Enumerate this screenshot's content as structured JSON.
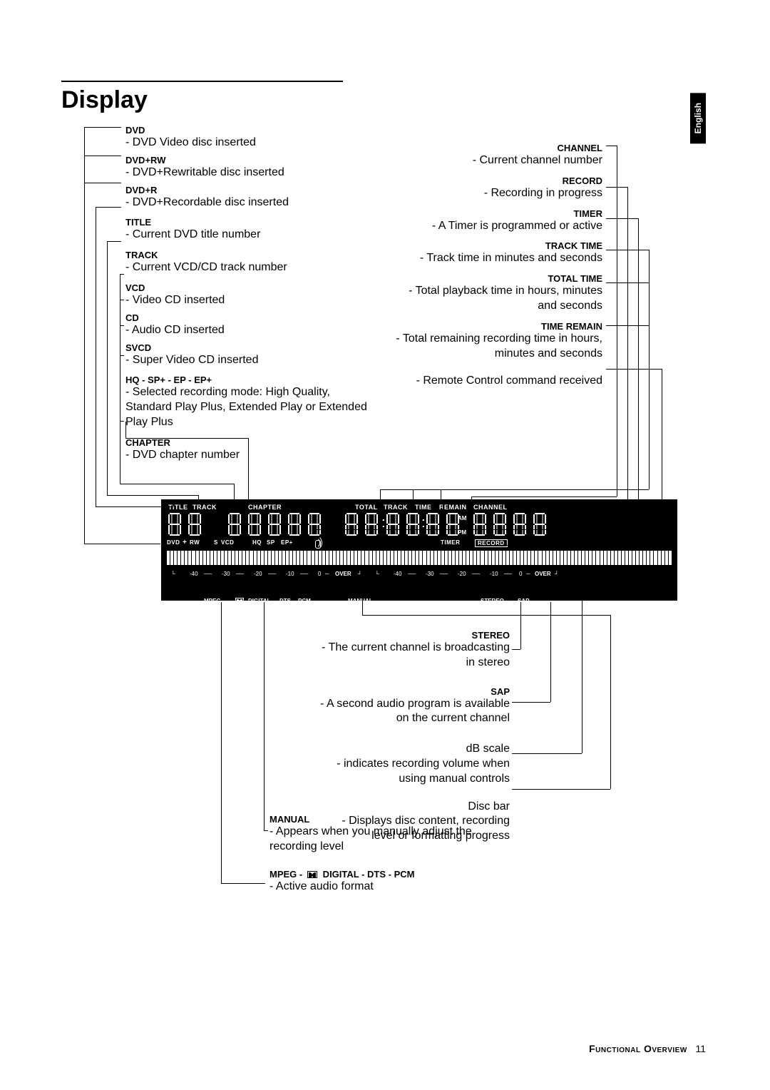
{
  "lang_tab": "English",
  "page_title": "Display",
  "left_callouts": [
    {
      "hd": "DVD",
      "ds": "- DVD Video disc inserted"
    },
    {
      "hd": "DVD+RW",
      "ds": "- DVD+Rewritable disc inserted"
    },
    {
      "hd": "DVD+R",
      "ds": "- DVD+Recordable disc inserted"
    },
    {
      "hd": "TITLE",
      "ds": "- Current DVD title number"
    },
    {
      "hd": "TRACK",
      "ds": "- Current VCD/CD track number"
    },
    {
      "hd": "VCD",
      "ds": "- Video CD inserted"
    },
    {
      "hd": "CD",
      "ds": "- Audio CD inserted"
    },
    {
      "hd": "SVCD",
      "ds": "- Super Video CD inserted"
    },
    {
      "hd": "HQ - SP+ - EP - EP+",
      "ds": "- Selected recording mode: High Quality, Standard Play Plus, Extended Play or Extended Play Plus"
    },
    {
      "hd": "CHAPTER",
      "ds": "- DVD chapter number"
    }
  ],
  "right_callouts": [
    {
      "hd": "CHANNEL",
      "ds": "- Current channel number"
    },
    {
      "hd": "RECORD",
      "ds": "- Recording in progress"
    },
    {
      "hd": "TIMER",
      "ds": "- A Timer is programmed or active"
    },
    {
      "hd": "TRACK TIME",
      "ds": "- Track time in minutes and seconds"
    },
    {
      "hd": "TOTAL TIME",
      "ds": "- Total playback time in hours, minutes and seconds"
    },
    {
      "hd": "TIME REMAIN",
      "ds": "- Total remaining recording time in hours, minutes and seconds"
    },
    {
      "hd": "",
      "ds": "- Remote Control command received"
    }
  ],
  "bottom_right_callouts": [
    {
      "hd": "STEREO",
      "ds": "- The current channel is broadcasting in stereo"
    },
    {
      "hd": "SAP",
      "ds": "- A second audio program is available on the current channel"
    },
    {
      "hd": "dB scale",
      "ds": "- indicates recording volume when using manual controls"
    },
    {
      "hd": "Disc bar",
      "ds": "- Displays disc content, recording level or formatting progress"
    }
  ],
  "bottom_left_callouts": [
    {
      "hd": "MANUAL",
      "ds": "- Appears when you manually adjust the recording level"
    },
    {
      "hd": "MPEG -      DIGITAL - DTS - PCM",
      "ds": "- Active audio format",
      "dolby": true
    }
  ],
  "panel": {
    "top_labels": {
      "title": "TITLE",
      "track": "TRACK",
      "chapter": "CHAPTER",
      "total": "TOTAL",
      "ttrack": "TRACK",
      "time": "TIME",
      "remain": "REMAIN",
      "channel": "CHANNEL"
    },
    "mid_labels": {
      "dvd": "DVD",
      "plus": "+",
      "rw": "RW",
      "s": "S",
      "vcd": "VCD",
      "hq": "HQ",
      "sp": "SP",
      "ep": "EP+",
      "timer": "TIMER",
      "record": "RECORD"
    },
    "ampm": {
      "am": "AM",
      "pm": "PM"
    },
    "db_marks": [
      "-40",
      "-30",
      "-20",
      "-10",
      "0",
      "OVER"
    ],
    "bottom_labels": {
      "mpeg": "MPEG",
      "digital": "DIGITAL",
      "dts": "DTS",
      "pcm": "PCM",
      "manual": "MANUAL",
      "stereo": "STEREO",
      "sap": "SAP"
    }
  },
  "footer": {
    "section": "Functional Overview",
    "page": "11"
  }
}
